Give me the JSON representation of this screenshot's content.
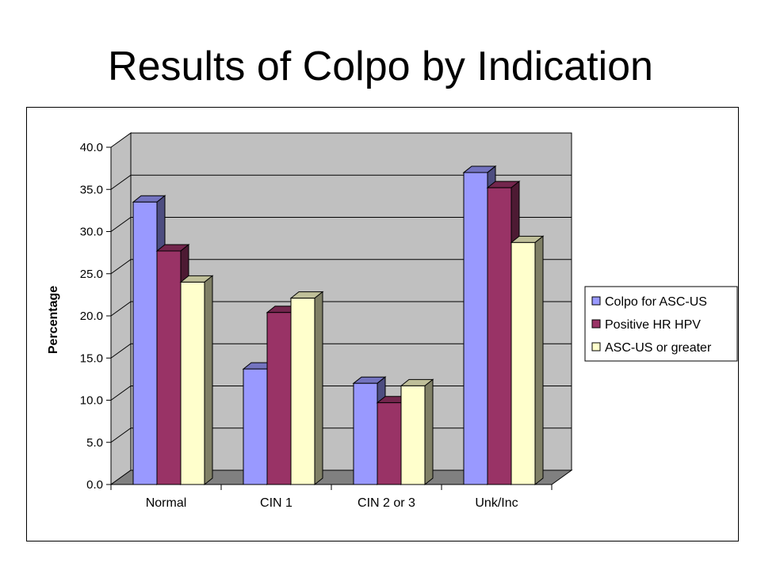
{
  "slide": {
    "title": "Results of Colpo by Indication"
  },
  "colors": {
    "wall": "#c0c0c0",
    "floor": "#808080",
    "gridline": "#000000"
  },
  "chart_data": {
    "type": "bar",
    "style": "3d-clustered-column",
    "categories": [
      "Normal",
      "CIN 1",
      "CIN 2 or 3",
      "Unk/Inc"
    ],
    "series": [
      {
        "name": "Colpo for ASC-US",
        "color": "#9999ff",
        "values": [
          33.5,
          13.7,
          12.0,
          37.0
        ]
      },
      {
        "name": "Positive HR HPV",
        "color": "#993366",
        "values": [
          27.7,
          20.4,
          9.7,
          35.2
        ]
      },
      {
        "name": "ASC-US or greater",
        "color": "#ffffcc",
        "values": [
          24.0,
          22.1,
          11.7,
          28.7
        ]
      }
    ],
    "ylabel": "Percentage",
    "xlabel": "",
    "ylim": [
      0,
      40
    ],
    "yticks": [
      "0.0",
      "5.0",
      "10.0",
      "15.0",
      "20.0",
      "25.0",
      "30.0",
      "35.0",
      "40.0"
    ],
    "grid": true,
    "legend": "right"
  }
}
